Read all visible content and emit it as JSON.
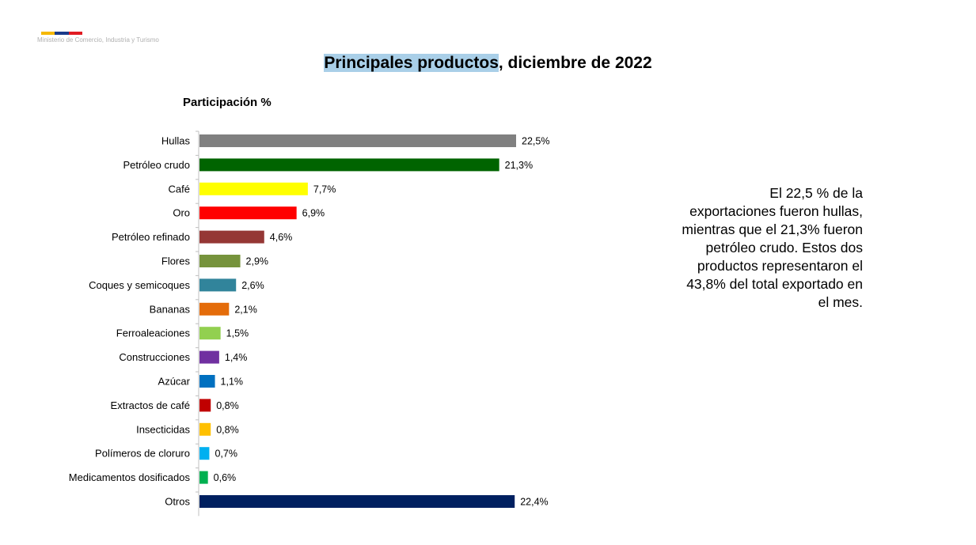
{
  "header": {
    "ministry": "Ministerio de Comercio, Industria y Turismo",
    "stripe_colors": [
      "#f5b800",
      "#1a3a8a",
      "#e11b22"
    ]
  },
  "title": {
    "highlighted": "Principales productos",
    "rest": ", diciembre de 2022",
    "highlight_color": "#a9cfe8"
  },
  "note": "El 22,5 % de la exportaciones fueron hullas, mientras que el 21,3% fueron petróleo crudo. Estos dos productos representaron el 43,8% del total exportado en el mes.",
  "chart_data": {
    "type": "bar",
    "orientation": "horizontal",
    "title": "Participación %",
    "xlabel": "",
    "ylabel": "",
    "xlim": [
      0,
      22.5
    ],
    "grid": false,
    "categories": [
      "Hullas",
      "Petróleo crudo",
      "Café",
      "Oro",
      "Petróleo refinado",
      "Flores",
      "Coques y semicoques",
      "Bananas",
      "Ferroaleaciones",
      "Construcciones",
      "Azúcar",
      "Extractos de café",
      "Insecticidas",
      "Polímeros de cloruro",
      "Medicamentos dosificados",
      "Otros"
    ],
    "values": [
      22.5,
      21.3,
      7.7,
      6.9,
      4.6,
      2.9,
      2.6,
      2.1,
      1.5,
      1.4,
      1.1,
      0.8,
      0.8,
      0.7,
      0.6,
      22.4
    ],
    "labels": [
      "22,5%",
      "21,3%",
      "7,7%",
      "6,9%",
      "4,6%",
      "2,9%",
      "2,6%",
      "2,1%",
      "1,5%",
      "1,4%",
      "1,1%",
      "0,8%",
      "0,8%",
      "0,7%",
      "0,6%",
      "22,4%"
    ],
    "colors": [
      "#808080",
      "#006400",
      "#ffff00",
      "#ff0000",
      "#953735",
      "#76933c",
      "#31849b",
      "#e46c0a",
      "#92d050",
      "#7030a0",
      "#0070c0",
      "#c00000",
      "#ffc000",
      "#00b0f0",
      "#00b050",
      "#002060"
    ]
  }
}
